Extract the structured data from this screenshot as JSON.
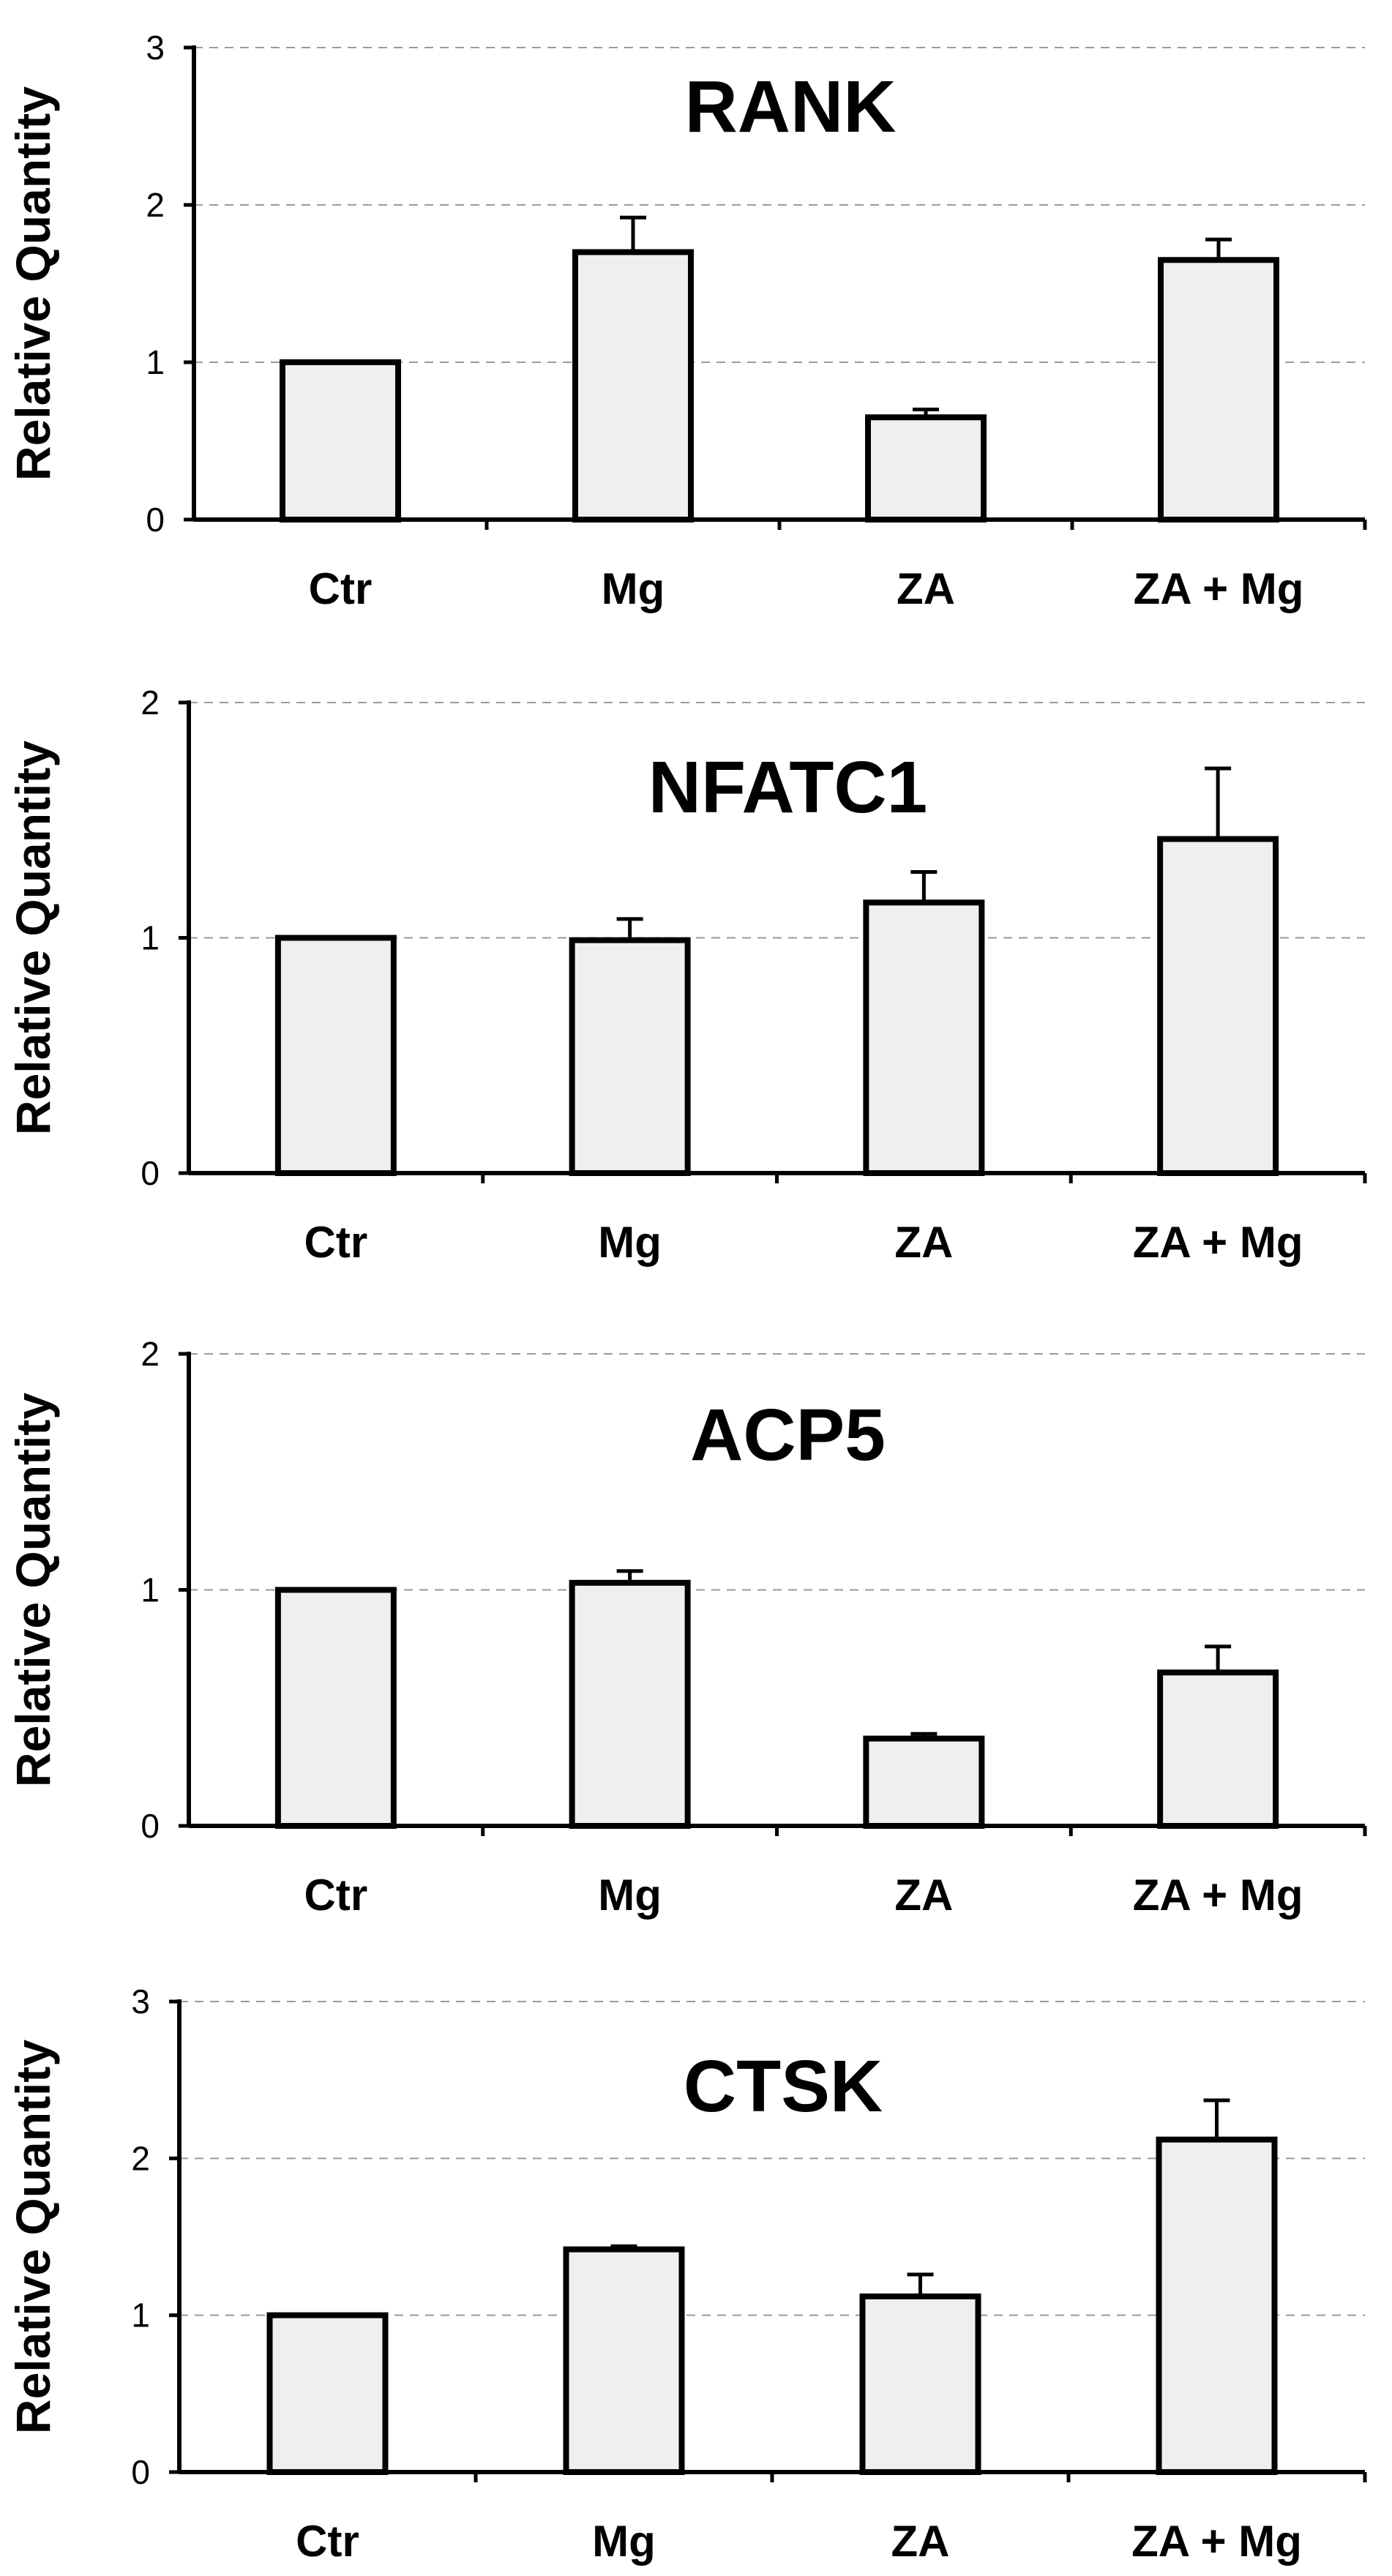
{
  "chart_data": [
    {
      "type": "bar",
      "title": "RANK",
      "ylabel": "Relative Quantity",
      "xlabel": "",
      "categories": [
        "Ctr",
        "Mg",
        "ZA",
        "ZA + Mg"
      ],
      "values": [
        1.0,
        1.7,
        0.65,
        1.65
      ],
      "errors": [
        0,
        0.22,
        0.05,
        0.13
      ],
      "ylim": [
        0,
        3
      ],
      "yticks": [
        0,
        1,
        2,
        3
      ],
      "grid": true
    },
    {
      "type": "bar",
      "title": "NFATC1",
      "ylabel": "Relative Quantity",
      "xlabel": "",
      "categories": [
        "Ctr",
        "Mg",
        "ZA",
        "ZA + Mg"
      ],
      "values": [
        1.0,
        0.99,
        1.15,
        1.42
      ],
      "errors": [
        0,
        0.09,
        0.13,
        0.3
      ],
      "ylim": [
        0,
        2
      ],
      "yticks": [
        0,
        1,
        2
      ],
      "grid": true
    },
    {
      "type": "bar",
      "title": "ACP5",
      "ylabel": "Relative Quantity",
      "xlabel": "",
      "categories": [
        "Ctr",
        "Mg",
        "ZA",
        "ZA + Mg"
      ],
      "values": [
        1.0,
        1.03,
        0.37,
        0.65
      ],
      "errors": [
        0,
        0.05,
        0.02,
        0.11
      ],
      "ylim": [
        0,
        2
      ],
      "yticks": [
        0,
        1,
        2
      ],
      "grid": true
    },
    {
      "type": "bar",
      "title": "CTSK",
      "ylabel": "Relative Quantity",
      "xlabel": "",
      "categories": [
        "Ctr",
        "Mg",
        "ZA",
        "ZA + Mg"
      ],
      "values": [
        1.0,
        1.42,
        1.12,
        2.12
      ],
      "errors": [
        0,
        0.02,
        0.14,
        0.25
      ],
      "ylim": [
        0,
        3
      ],
      "yticks": [
        0,
        1,
        2,
        3
      ],
      "grid": true
    }
  ]
}
